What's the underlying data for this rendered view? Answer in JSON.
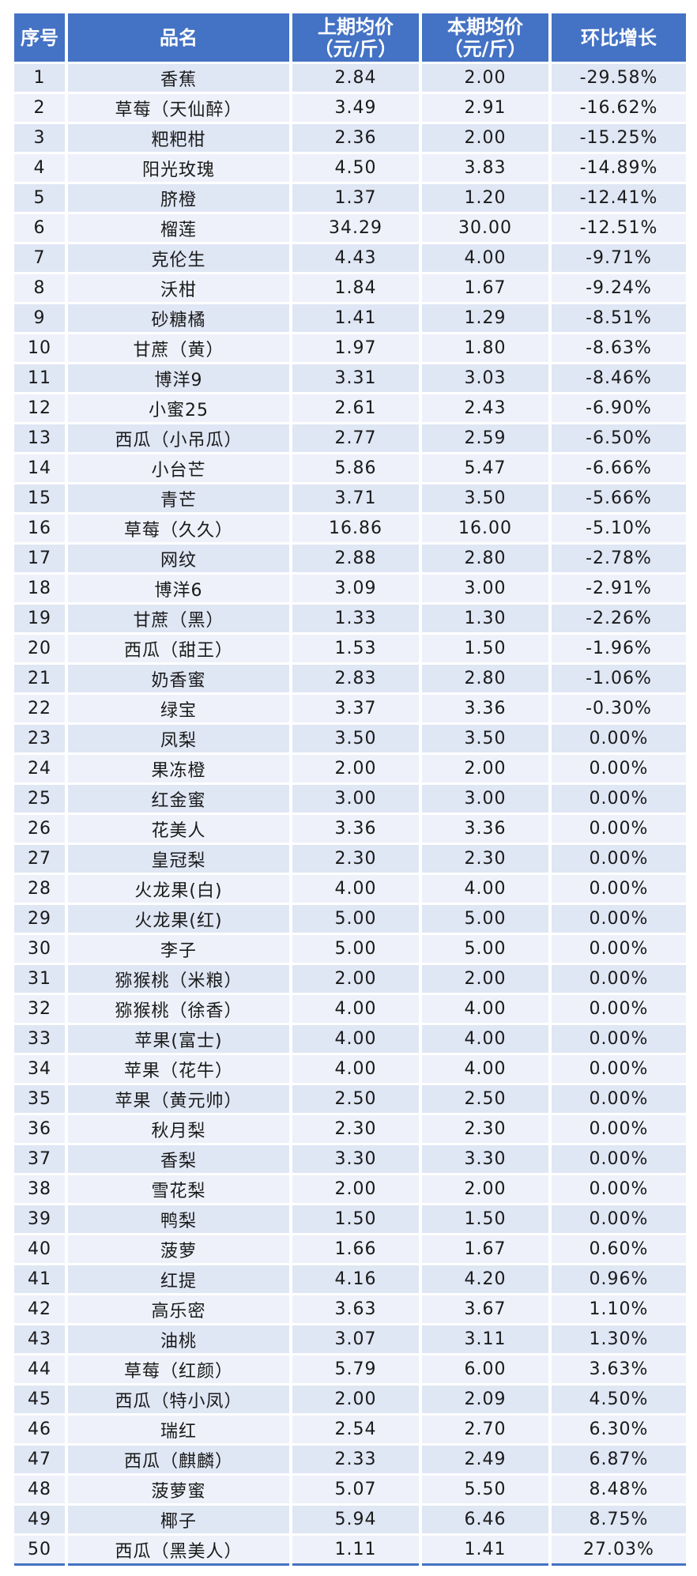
{
  "table": {
    "headers": {
      "index": "序号",
      "name": "品名",
      "prev_line1": "上期均价",
      "prev_line2": "（元/斤）",
      "curr_line1": "本期均价",
      "curr_line2": "（元/斤）",
      "change": "环比增长"
    },
    "rows": [
      {
        "index": "1",
        "name": "香蕉",
        "prev": "2.84",
        "curr": "2.00",
        "change": "-29.58%"
      },
      {
        "index": "2",
        "name": "草莓（天仙醉）",
        "prev": "3.49",
        "curr": "2.91",
        "change": "-16.62%"
      },
      {
        "index": "3",
        "name": "粑粑柑",
        "prev": "2.36",
        "curr": "2.00",
        "change": "-15.25%"
      },
      {
        "index": "4",
        "name": "阳光玫瑰",
        "prev": "4.50",
        "curr": "3.83",
        "change": "-14.89%"
      },
      {
        "index": "5",
        "name": "脐橙",
        "prev": "1.37",
        "curr": "1.20",
        "change": "-12.41%"
      },
      {
        "index": "6",
        "name": "榴莲",
        "prev": "34.29",
        "curr": "30.00",
        "change": "-12.51%"
      },
      {
        "index": "7",
        "name": "克伦生",
        "prev": "4.43",
        "curr": "4.00",
        "change": "-9.71%"
      },
      {
        "index": "8",
        "name": "沃柑",
        "prev": "1.84",
        "curr": "1.67",
        "change": "-9.24%"
      },
      {
        "index": "9",
        "name": "砂糖橘",
        "prev": "1.41",
        "curr": "1.29",
        "change": "-8.51%"
      },
      {
        "index": "10",
        "name": "甘蔗（黄）",
        "prev": "1.97",
        "curr": "1.80",
        "change": "-8.63%"
      },
      {
        "index": "11",
        "name": "博洋9",
        "prev": "3.31",
        "curr": "3.03",
        "change": "-8.46%"
      },
      {
        "index": "12",
        "name": "小蜜25",
        "prev": "2.61",
        "curr": "2.43",
        "change": "-6.90%"
      },
      {
        "index": "13",
        "name": "西瓜（小吊瓜）",
        "prev": "2.77",
        "curr": "2.59",
        "change": "-6.50%"
      },
      {
        "index": "14",
        "name": "小台芒",
        "prev": "5.86",
        "curr": "5.47",
        "change": "-6.66%"
      },
      {
        "index": "15",
        "name": "青芒",
        "prev": "3.71",
        "curr": "3.50",
        "change": "-5.66%"
      },
      {
        "index": "16",
        "name": "草莓（久久）",
        "prev": "16.86",
        "curr": "16.00",
        "change": "-5.10%"
      },
      {
        "index": "17",
        "name": "网纹",
        "prev": "2.88",
        "curr": "2.80",
        "change": "-2.78%"
      },
      {
        "index": "18",
        "name": "博洋6",
        "prev": "3.09",
        "curr": "3.00",
        "change": "-2.91%"
      },
      {
        "index": "19",
        "name": "甘蔗（黑）",
        "prev": "1.33",
        "curr": "1.30",
        "change": "-2.26%"
      },
      {
        "index": "20",
        "name": "西瓜（甜王）",
        "prev": "1.53",
        "curr": "1.50",
        "change": "-1.96%"
      },
      {
        "index": "21",
        "name": "奶香蜜",
        "prev": "2.83",
        "curr": "2.80",
        "change": "-1.06%"
      },
      {
        "index": "22",
        "name": "绿宝",
        "prev": "3.37",
        "curr": "3.36",
        "change": "-0.30%"
      },
      {
        "index": "23",
        "name": "凤梨",
        "prev": "3.50",
        "curr": "3.50",
        "change": "0.00%"
      },
      {
        "index": "24",
        "name": "果冻橙",
        "prev": "2.00",
        "curr": "2.00",
        "change": "0.00%"
      },
      {
        "index": "25",
        "name": "红金蜜",
        "prev": "3.00",
        "curr": "3.00",
        "change": "0.00%"
      },
      {
        "index": "26",
        "name": "花美人",
        "prev": "3.36",
        "curr": "3.36",
        "change": "0.00%"
      },
      {
        "index": "27",
        "name": "皇冠梨",
        "prev": "2.30",
        "curr": "2.30",
        "change": "0.00%"
      },
      {
        "index": "28",
        "name": "火龙果(白)",
        "prev": "4.00",
        "curr": "4.00",
        "change": "0.00%"
      },
      {
        "index": "29",
        "name": "火龙果(红)",
        "prev": "5.00",
        "curr": "5.00",
        "change": "0.00%"
      },
      {
        "index": "30",
        "name": "李子",
        "prev": "5.00",
        "curr": "5.00",
        "change": "0.00%"
      },
      {
        "index": "31",
        "name": "猕猴桃（米粮）",
        "prev": "2.00",
        "curr": "2.00",
        "change": "0.00%"
      },
      {
        "index": "32",
        "name": "猕猴桃（徐香）",
        "prev": "4.00",
        "curr": "4.00",
        "change": "0.00%"
      },
      {
        "index": "33",
        "name": "苹果(富士)",
        "prev": "4.00",
        "curr": "4.00",
        "change": "0.00%"
      },
      {
        "index": "34",
        "name": "苹果（花牛）",
        "prev": "4.00",
        "curr": "4.00",
        "change": "0.00%"
      },
      {
        "index": "35",
        "name": "苹果（黄元帅）",
        "prev": "2.50",
        "curr": "2.50",
        "change": "0.00%"
      },
      {
        "index": "36",
        "name": "秋月梨",
        "prev": "2.30",
        "curr": "2.30",
        "change": "0.00%"
      },
      {
        "index": "37",
        "name": "香梨",
        "prev": "3.30",
        "curr": "3.30",
        "change": "0.00%"
      },
      {
        "index": "38",
        "name": "雪花梨",
        "prev": "2.00",
        "curr": "2.00",
        "change": "0.00%"
      },
      {
        "index": "39",
        "name": "鸭梨",
        "prev": "1.50",
        "curr": "1.50",
        "change": "0.00%"
      },
      {
        "index": "40",
        "name": "菠萝",
        "prev": "1.66",
        "curr": "1.67",
        "change": "0.60%"
      },
      {
        "index": "41",
        "name": "红提",
        "prev": "4.16",
        "curr": "4.20",
        "change": "0.96%"
      },
      {
        "index": "42",
        "name": "高乐密",
        "prev": "3.63",
        "curr": "3.67",
        "change": "1.10%"
      },
      {
        "index": "43",
        "name": "油桃",
        "prev": "3.07",
        "curr": "3.11",
        "change": "1.30%"
      },
      {
        "index": "44",
        "name": "草莓（红颜）",
        "prev": "5.79",
        "curr": "6.00",
        "change": "3.63%"
      },
      {
        "index": "45",
        "name": "西瓜（特小凤）",
        "prev": "2.00",
        "curr": "2.09",
        "change": "4.50%"
      },
      {
        "index": "46",
        "name": "瑞红",
        "prev": "2.54",
        "curr": "2.70",
        "change": "6.30%"
      },
      {
        "index": "47",
        "name": "西瓜（麒麟）",
        "prev": "2.33",
        "curr": "2.49",
        "change": "6.87%"
      },
      {
        "index": "48",
        "name": "菠萝蜜",
        "prev": "5.07",
        "curr": "5.50",
        "change": "8.48%"
      },
      {
        "index": "49",
        "name": "椰子",
        "prev": "5.94",
        "curr": "6.46",
        "change": "8.75%"
      },
      {
        "index": "50",
        "name": "西瓜（黑美人）",
        "prev": "1.11",
        "curr": "1.41",
        "change": "27.03%"
      }
    ]
  }
}
